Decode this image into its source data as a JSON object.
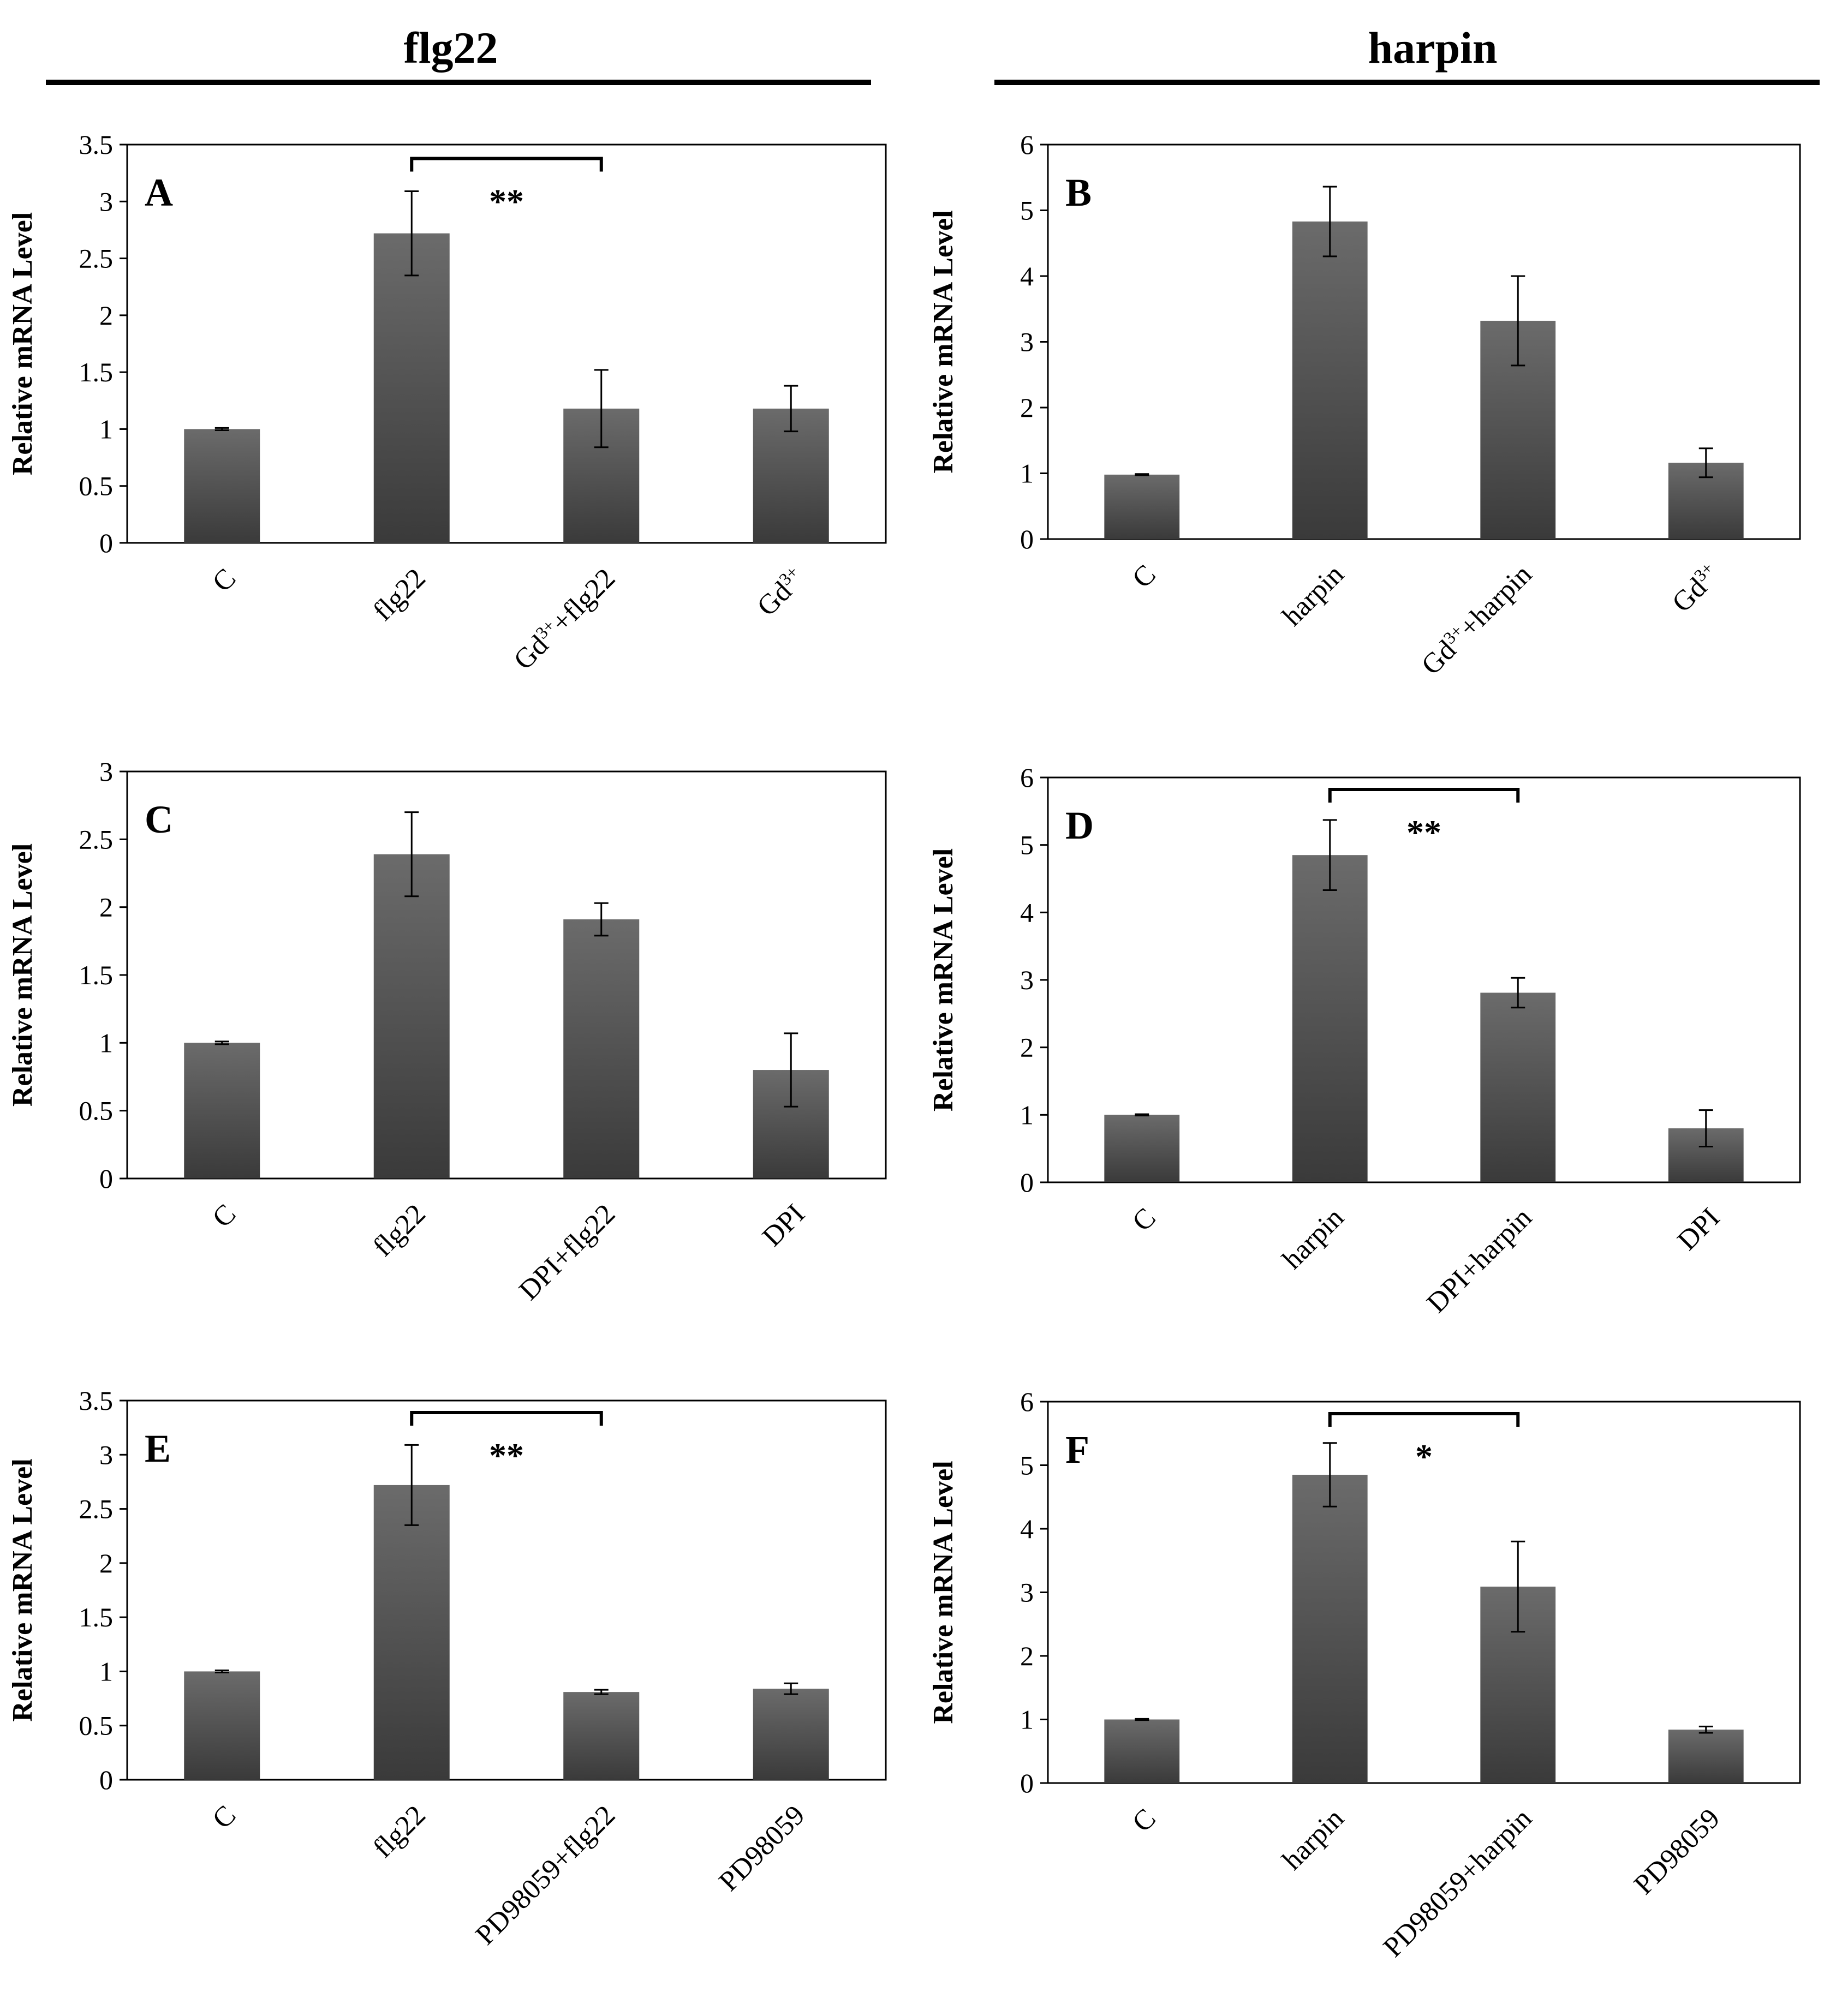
{
  "columns": [
    {
      "title": "flg22"
    },
    {
      "title": "harpin"
    }
  ],
  "colors": {
    "bar_top": "#6b6b6b",
    "bar_bottom": "#3a3a3a",
    "frame": "#000000",
    "error": "#000000"
  },
  "chart_data": [
    {
      "panel": "A",
      "type": "bar",
      "ylabel": "Relative mRNA Level",
      "ylim": [
        0,
        3.5
      ],
      "yticks": [
        "0",
        "0.5",
        "1",
        "1.5",
        "2",
        "2.5",
        "3",
        "3.5"
      ],
      "categories": [
        [
          "C"
        ],
        [
          "flg22"
        ],
        [
          "Gd",
          "3+",
          "+flg22"
        ],
        [
          "Gd",
          "3+"
        ]
      ],
      "values": [
        1.0,
        2.72,
        1.18,
        1.18
      ],
      "errors": [
        0.01,
        0.37,
        0.34,
        0.2
      ],
      "significance": [
        {
          "from": 1,
          "to": 2,
          "label": "**"
        }
      ]
    },
    {
      "panel": "B",
      "type": "bar",
      "ylabel": "Relative mRNA Level",
      "ylim": [
        0,
        6
      ],
      "yticks": [
        "0",
        "1",
        "2",
        "3",
        "4",
        "5",
        "6"
      ],
      "categories": [
        [
          "C"
        ],
        [
          "harpin"
        ],
        [
          "Gd",
          "3+",
          "+harpin"
        ],
        [
          "Gd",
          "3+"
        ]
      ],
      "values": [
        0.98,
        4.83,
        3.32,
        1.16
      ],
      "errors": [
        0.01,
        0.53,
        0.68,
        0.22
      ],
      "significance": []
    },
    {
      "panel": "C",
      "type": "bar",
      "ylabel": "Relative mRNA Level",
      "ylim": [
        0,
        3
      ],
      "yticks": [
        "0",
        "0.5",
        "1",
        "1.5",
        "2",
        "2.5",
        "3"
      ],
      "categories": [
        [
          "C"
        ],
        [
          "flg22"
        ],
        [
          "DPI+flg22"
        ],
        [
          "DPI"
        ]
      ],
      "values": [
        1.0,
        2.39,
        1.91,
        0.8
      ],
      "errors": [
        0.01,
        0.31,
        0.12,
        0.27
      ],
      "significance": []
    },
    {
      "panel": "D",
      "type": "bar",
      "ylabel": "Relative mRNA Level",
      "ylim": [
        0,
        6
      ],
      "yticks": [
        "0",
        "1",
        "2",
        "3",
        "4",
        "5",
        "6"
      ],
      "categories": [
        [
          "C"
        ],
        [
          "harpin"
        ],
        [
          "DPI+harpin"
        ],
        [
          "DPI"
        ]
      ],
      "values": [
        1.0,
        4.85,
        2.81,
        0.8
      ],
      "errors": [
        0.01,
        0.52,
        0.22,
        0.27
      ],
      "significance": [
        {
          "from": 1,
          "to": 2,
          "label": "**"
        }
      ]
    },
    {
      "panel": "E",
      "type": "bar",
      "ylabel": "Relative mRNA Level",
      "ylim": [
        0,
        3.5
      ],
      "yticks": [
        "0",
        "0.5",
        "1",
        "1.5",
        "2",
        "2.5",
        "3",
        "3.5"
      ],
      "categories": [
        [
          "C"
        ],
        [
          "flg22"
        ],
        [
          "PD98059+flg22"
        ],
        [
          "PD98059"
        ]
      ],
      "values": [
        1.0,
        2.72,
        0.81,
        0.84
      ],
      "errors": [
        0.01,
        0.37,
        0.02,
        0.05
      ],
      "significance": [
        {
          "from": 1,
          "to": 2,
          "label": "**"
        }
      ]
    },
    {
      "panel": "F",
      "type": "bar",
      "ylabel": "Relative mRNA Level",
      "ylim": [
        0,
        6
      ],
      "yticks": [
        "0",
        "1",
        "2",
        "3",
        "4",
        "5",
        "6"
      ],
      "categories": [
        [
          "C"
        ],
        [
          "harpin"
        ],
        [
          "PD98059+harpin"
        ],
        [
          "PD98059"
        ]
      ],
      "values": [
        1.0,
        4.85,
        3.09,
        0.84
      ],
      "errors": [
        0.01,
        0.5,
        0.71,
        0.05
      ],
      "significance": [
        {
          "from": 1,
          "to": 2,
          "label": "*"
        }
      ]
    }
  ]
}
